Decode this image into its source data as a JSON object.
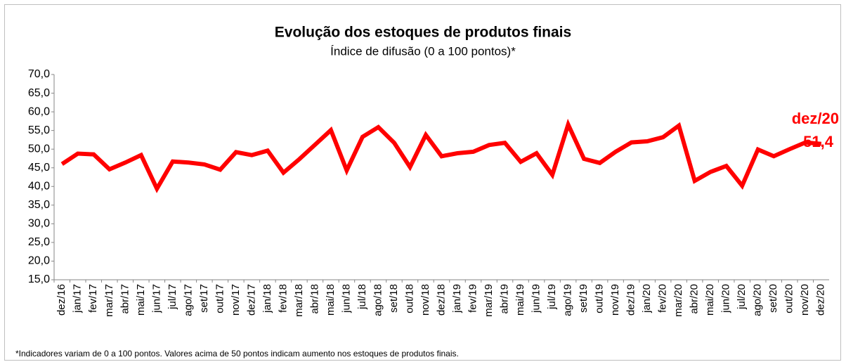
{
  "chart_data": {
    "type": "line",
    "title": "Evolução dos estoques de produtos finais",
    "subtitle": "Índice de difusão (0 a 100 pontos)*",
    "footnote": "*Indicadores variam de 0 a 100 pontos. Valores acima de 50 pontos indicam aumento nos estoques de produtos finais.",
    "annotation": {
      "category": "dez/20",
      "value_label": "51,4"
    },
    "categories": [
      "dez/16",
      "jan/17",
      "fev/17",
      "mar/17",
      "abr/17",
      "mai/17",
      "jun/17",
      "jul/17",
      "ago/17",
      "set/17",
      "out/17",
      "nov/17",
      "dez/17",
      "jan/18",
      "fev/18",
      "mar/18",
      "abr/18",
      "mai/18",
      "jun/18",
      "jul/18",
      "ago/18",
      "set/18",
      "out/18",
      "nov/18",
      "dez/18",
      "jan/19",
      "fev/19",
      "mar/19",
      "abr/19",
      "mai/19",
      "jun/19",
      "jul/19",
      "ago/19",
      "set/19",
      "out/19",
      "nov/19",
      "dez/19",
      "jan/20",
      "fev/20",
      "mar/20",
      "abr/20",
      "mai/20",
      "jun/20",
      "jul/20",
      "ago/20",
      "set/20",
      "out/20",
      "nov/20",
      "dez/20"
    ],
    "series": [
      {
        "color": "#ff0000",
        "values": [
          46.0,
          48.8,
          48.6,
          44.6,
          46.4,
          48.4,
          39.4,
          46.7,
          46.4,
          45.9,
          44.5,
          49.2,
          48.4,
          49.6,
          43.7,
          47.3,
          51.2,
          55.1,
          44.3,
          53.3,
          55.9,
          51.7,
          45.2,
          53.8,
          48.1,
          48.9,
          49.3,
          51.1,
          51.7,
          46.6,
          48.9,
          43.1,
          56.6,
          47.4,
          46.3,
          49.3,
          51.8,
          52.1,
          53.2,
          56.3,
          41.5,
          43.9,
          45.5,
          40.2,
          49.9,
          48.1,
          50.0,
          51.8,
          51.4
        ]
      }
    ],
    "ylim": [
      15,
      70
    ],
    "yticks": [
      {
        "value": 15,
        "label": "15,0"
      },
      {
        "value": 20,
        "label": "20,0"
      },
      {
        "value": 25,
        "label": "25,0"
      },
      {
        "value": 30,
        "label": "30,0"
      },
      {
        "value": 35,
        "label": "35,0"
      },
      {
        "value": 40,
        "label": "40,0"
      },
      {
        "value": 45,
        "label": "45,0"
      },
      {
        "value": 50,
        "label": "50,0"
      },
      {
        "value": 55,
        "label": "55,0"
      },
      {
        "value": 60,
        "label": "60,0"
      },
      {
        "value": 65,
        "label": "65,0"
      },
      {
        "value": 70,
        "label": "70,0"
      }
    ],
    "grid": false
  }
}
